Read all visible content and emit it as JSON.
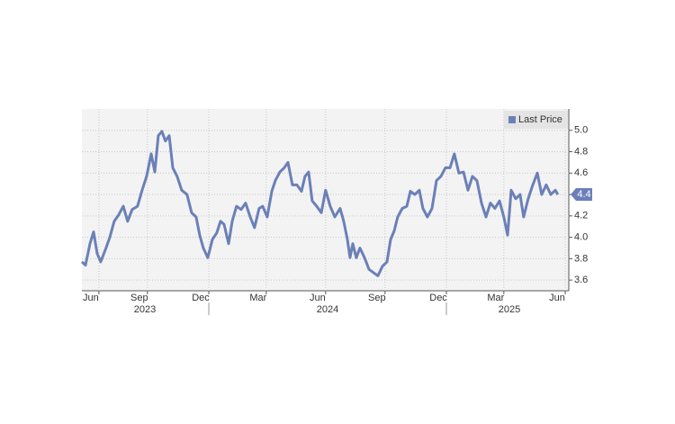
{
  "chart_data": {
    "type": "line",
    "series": [
      {
        "name": "Last Price",
        "color": "#6b80b8",
        "x": [
          5.54,
          5.72,
          5.95,
          6.13,
          6.31,
          6.49,
          6.76,
          6.95,
          7.17,
          7.4,
          7.63,
          7.85,
          8.08,
          8.35,
          8.58,
          8.81,
          9.04,
          9.22,
          9.4,
          9.58,
          9.76,
          9.95,
          10.13,
          10.35,
          10.58,
          10.85,
          11.08,
          11.31,
          11.49,
          11.67,
          11.9,
          12.13,
          12.35,
          12.54,
          12.72,
          12.95,
          13.13,
          13.35,
          13.58,
          13.81,
          14.04,
          14.26,
          14.49,
          14.67,
          14.9,
          15.13,
          15.31,
          15.54,
          15.76,
          15.95,
          16.17,
          16.4,
          16.63,
          16.81,
          16.99,
          17.17,
          17.4,
          17.63,
          17.85,
          18.08,
          18.31,
          18.58,
          18.76,
          18.95,
          19.08,
          19.22,
          19.4,
          19.58,
          19.81,
          20.04,
          20.26,
          20.49,
          20.72,
          20.95,
          21.13,
          21.31,
          21.49,
          21.72,
          21.95,
          22.13,
          22.35,
          22.58,
          22.76,
          22.99,
          23.22,
          23.45,
          23.67,
          23.9,
          24.13,
          24.35,
          24.58,
          24.81,
          25.04,
          25.26,
          25.49,
          25.72,
          25.95,
          26.17,
          26.4,
          26.63,
          26.85,
          27.04,
          27.22,
          27.45,
          27.67,
          27.85,
          28.08,
          28.31,
          28.54,
          28.76,
          28.99,
          29.22,
          29.45,
          29.58
        ],
        "values": [
          3.77,
          3.74,
          3.94,
          4.05,
          3.85,
          3.77,
          3.9,
          4.0,
          4.15,
          4.21,
          4.29,
          4.15,
          4.26,
          4.29,
          4.44,
          4.57,
          4.78,
          4.61,
          4.95,
          4.99,
          4.9,
          4.95,
          4.65,
          4.57,
          4.44,
          4.4,
          4.23,
          4.19,
          4.02,
          3.9,
          3.81,
          3.98,
          4.04,
          4.15,
          4.12,
          3.94,
          4.15,
          4.29,
          4.26,
          4.32,
          4.19,
          4.09,
          4.27,
          4.29,
          4.19,
          4.43,
          4.53,
          4.61,
          4.65,
          4.7,
          4.49,
          4.49,
          4.43,
          4.57,
          4.61,
          4.34,
          4.29,
          4.23,
          4.44,
          4.29,
          4.19,
          4.27,
          4.15,
          3.98,
          3.81,
          3.94,
          3.81,
          3.9,
          3.81,
          3.7,
          3.67,
          3.64,
          3.73,
          3.77,
          3.98,
          4.06,
          4.19,
          4.27,
          4.29,
          4.43,
          4.4,
          4.44,
          4.27,
          4.19,
          4.27,
          4.53,
          4.57,
          4.65,
          4.65,
          4.78,
          4.6,
          4.61,
          4.44,
          4.57,
          4.53,
          4.32,
          4.19,
          4.32,
          4.27,
          4.34,
          4.19,
          4.02,
          4.44,
          4.36,
          4.4,
          4.19,
          4.36,
          4.49,
          4.6,
          4.4,
          4.49,
          4.4,
          4.44,
          4.4
        ]
      }
    ],
    "last_value_label": "4.4",
    "xlim": [
      5.54,
      30.13
    ],
    "xticks": [
      {
        "value": 6.4,
        "label": "Jun"
      },
      {
        "value": 8.85,
        "label": "Sep"
      },
      {
        "value": 11.95,
        "label": "Dec"
      },
      {
        "value": 14.85,
        "label": "Mar"
      },
      {
        "value": 17.85,
        "label": "Jun"
      },
      {
        "value": 20.85,
        "label": "Sep"
      },
      {
        "value": 23.95,
        "label": "Dec"
      },
      {
        "value": 26.85,
        "label": "Mar"
      },
      {
        "value": 29.95,
        "label": "Jun"
      }
    ],
    "year_labels": [
      {
        "value": 8.72,
        "label": "2023"
      },
      {
        "value": 17.95,
        "label": "2024"
      },
      {
        "value": 27.13,
        "label": "2025"
      }
    ],
    "ylim": [
      3.5,
      5.2
    ],
    "yticks": [
      3.6,
      3.8,
      {
        "value": 4,
        "label": "4.0"
      },
      4.2,
      4.4,
      4.6,
      4.8,
      {
        "value": 5,
        "label": "5.0"
      }
    ],
    "grid": true,
    "legend": "top-right"
  }
}
